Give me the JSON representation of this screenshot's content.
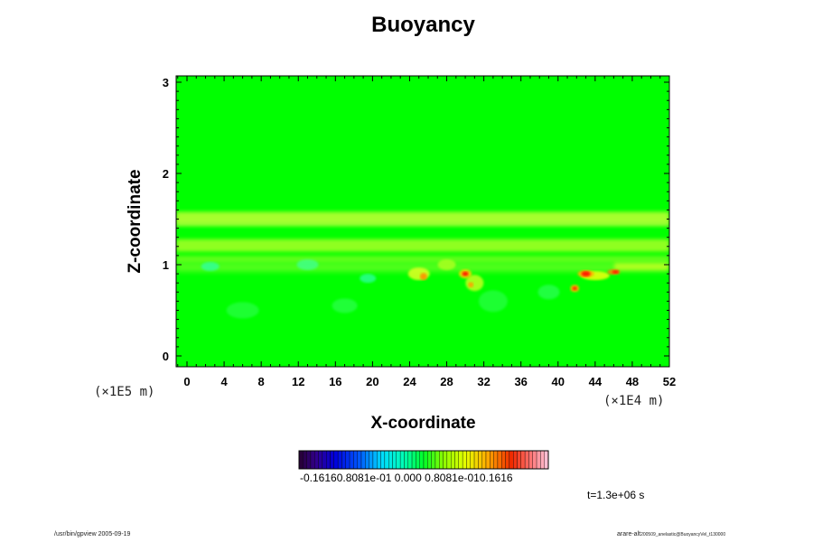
{
  "chart_data": {
    "type": "heatmap",
    "title": "Buoyancy",
    "xlabel": "X-coordinate",
    "ylabel": "Z-coordinate",
    "x_scale_label": "(×1E4 m)",
    "z_scale_label": "(×1E5 m)",
    "xlim": [
      -1,
      52
    ],
    "ylim": [
      -0.1,
      3.05
    ],
    "x_ticks": [
      "0",
      "4",
      "8",
      "12",
      "16",
      "20",
      "24",
      "28",
      "32",
      "36",
      "40",
      "44",
      "48",
      "52"
    ],
    "y_ticks": [
      "0",
      "1",
      "2",
      "3"
    ],
    "colorbar": {
      "min": -0.1616,
      "max": 0.1616,
      "tick_label_text": "-0.16160.8081e-01 0.000 0.8081e-010.1616",
      "colormap": "rainbow (purple-blue-cyan-green-yellow-red-pink)"
    },
    "background_color": "#00ff00",
    "features": [
      {
        "description": "light yellow-green horizontal band",
        "z_range": [
          1.5,
          1.6
        ]
      },
      {
        "description": "light yellow-green horizontal band",
        "z_range": [
          1.15,
          1.3
        ]
      },
      {
        "description": "positive buoyancy maxima (red/yellow)",
        "approx_x": [
          25,
          30,
          43,
          46
        ],
        "approx_z": [
          0.85,
          0.9,
          0.9,
          0.9
        ]
      },
      {
        "description": "slight negative buoyancy (cyan)",
        "approx_x": [
          2,
          13,
          20
        ],
        "approx_z": [
          0.95,
          1.0,
          0.85
        ]
      }
    ],
    "time_label": "t=1.3e+06 s"
  },
  "footer": {
    "left": "/usr/bin/gpview 2005-09-19",
    "right_main": "arare-alt",
    "right_small": "200509_anelastic@BuoyancyVel_t130000"
  }
}
